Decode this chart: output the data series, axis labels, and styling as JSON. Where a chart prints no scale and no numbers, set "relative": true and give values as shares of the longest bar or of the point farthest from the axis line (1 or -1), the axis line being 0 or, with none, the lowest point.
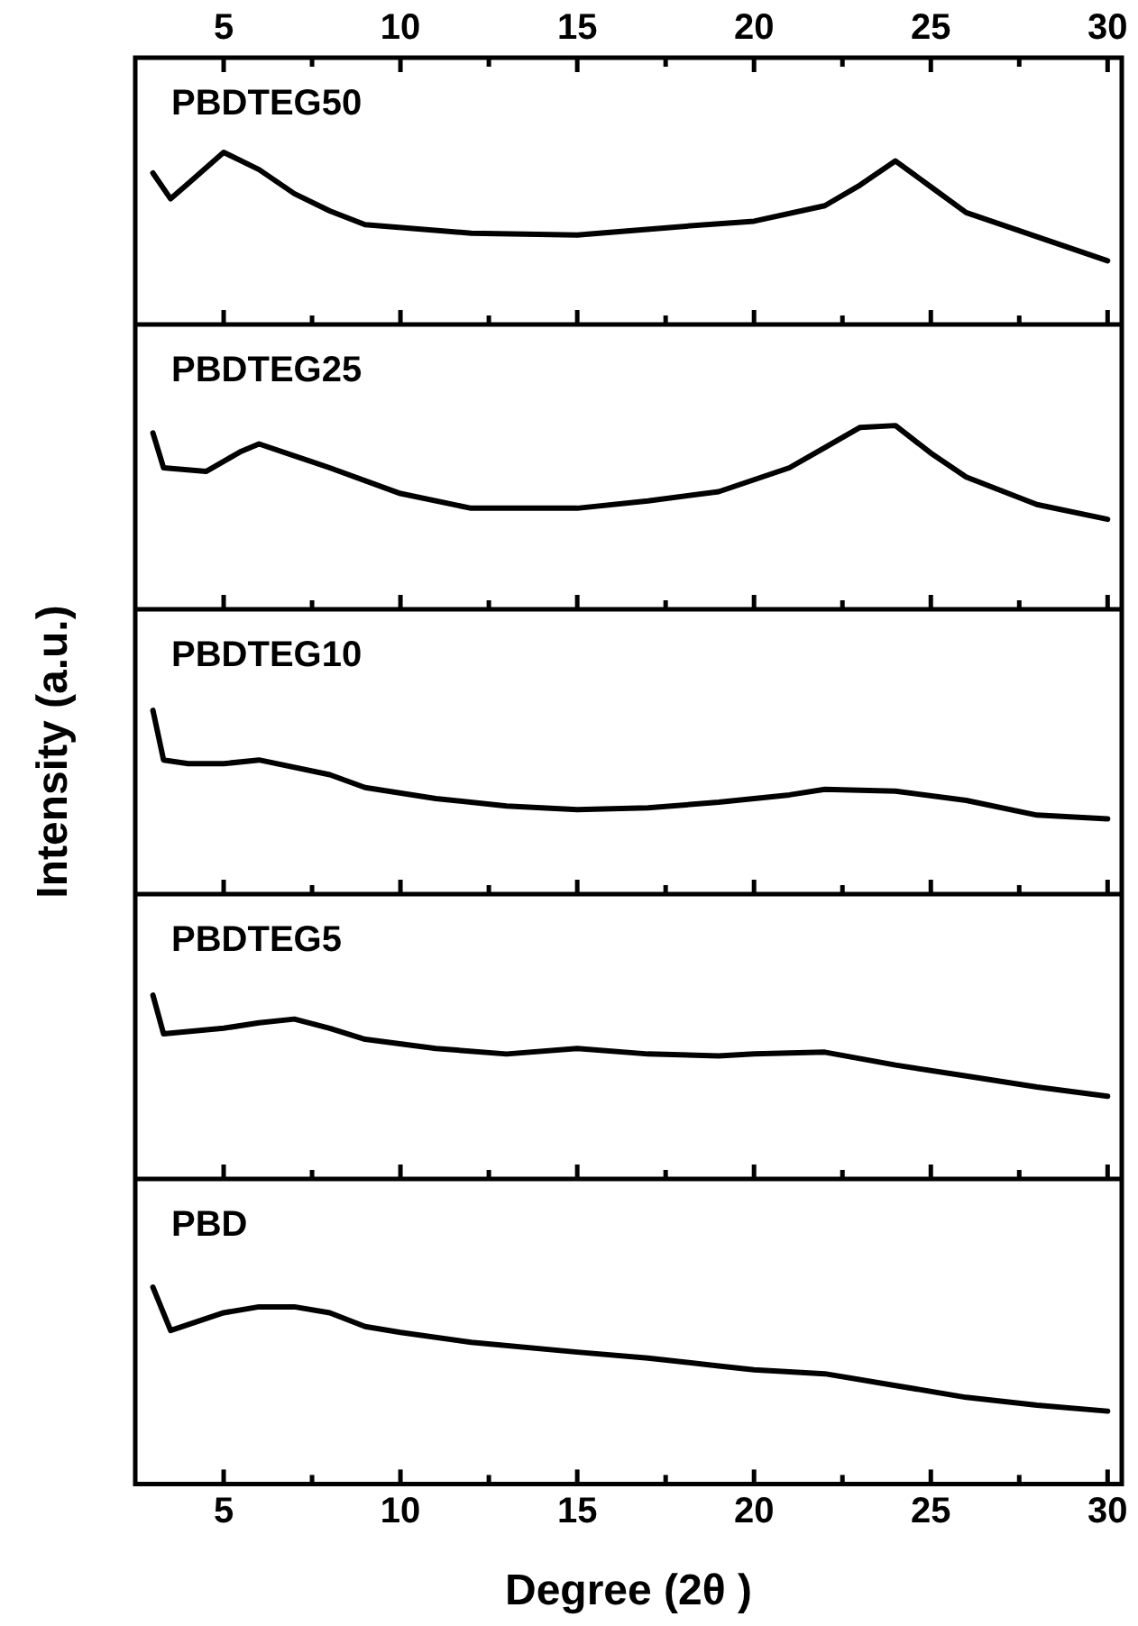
{
  "chart_data": [
    {
      "type": "line",
      "relative": true,
      "xlim": [
        2.5,
        30.4
      ],
      "x2lim": [
        2.5,
        30.4
      ],
      "tick_labels": false,
      "x2ticks": [
        5,
        {
          "value": 7.5,
          "label": null
        },
        10,
        {
          "value": 12.5,
          "label": null
        },
        15,
        {
          "value": 17.5,
          "label": null
        },
        20,
        {
          "value": 22.5,
          "label": null
        },
        25,
        {
          "value": 27.5,
          "label": null
        },
        30
      ],
      "xticks": [
        {
          "value": 5,
          "label": null
        },
        {
          "value": 7.5,
          "label": null
        },
        {
          "value": 10,
          "label": null
        },
        {
          "value": 12.5,
          "label": null
        },
        {
          "value": 15,
          "label": null
        },
        {
          "value": 17.5,
          "label": null
        },
        {
          "value": 20,
          "label": null
        },
        {
          "value": 22.5,
          "label": null
        },
        {
          "value": 25,
          "label": null
        },
        {
          "value": 27.5,
          "label": null
        },
        {
          "value": 30,
          "label": null
        }
      ],
      "series": [
        {
          "name": "PBDTEG50",
          "color": "#000000",
          "x": [
            3,
            3.5,
            4,
            5,
            6,
            7,
            8,
            9,
            12,
            15,
            18,
            20,
            22,
            23,
            24,
            25,
            26,
            28,
            30
          ],
          "values": [
            0.88,
            0.73,
            0.82,
            1,
            0.9,
            0.76,
            0.66,
            0.58,
            0.53,
            0.52,
            0.57,
            0.6,
            0.69,
            0.81,
            0.95,
            0.8,
            0.65,
            0.51,
            0.37
          ]
        }
      ]
    },
    {
      "type": "line",
      "relative": true,
      "xlim": [
        2.5,
        30.4
      ],
      "tick_labels": false,
      "xticks": [
        {
          "value": 5,
          "label": null
        },
        {
          "value": 7.5,
          "label": null
        },
        {
          "value": 10,
          "label": null
        },
        {
          "value": 12.5,
          "label": null
        },
        {
          "value": 15,
          "label": null
        },
        {
          "value": 17.5,
          "label": null
        },
        {
          "value": 20,
          "label": null
        },
        {
          "value": 22.5,
          "label": null
        },
        {
          "value": 25,
          "label": null
        },
        {
          "value": 27.5,
          "label": null
        },
        {
          "value": 30,
          "label": null
        }
      ],
      "series": [
        {
          "name": "PBDTEG25",
          "color": "#000000",
          "x": [
            3,
            3.3,
            4.5,
            5.5,
            6,
            8,
            10,
            12,
            15,
            17,
            19,
            21,
            22,
            23,
            24,
            25,
            26,
            28,
            30
          ],
          "values": [
            0.96,
            0.77,
            0.75,
            0.86,
            0.9,
            0.77,
            0.63,
            0.55,
            0.55,
            0.59,
            0.64,
            0.77,
            0.88,
            0.99,
            1,
            0.85,
            0.72,
            0.57,
            0.49
          ]
        }
      ]
    },
    {
      "type": "line",
      "relative": true,
      "xlim": [
        2.5,
        30.4
      ],
      "tick_labels": false,
      "ylabel": "Intensity (a.u.)",
      "xticks": [
        {
          "value": 5,
          "label": null
        },
        {
          "value": 7.5,
          "label": null
        },
        {
          "value": 10,
          "label": null
        },
        {
          "value": 12.5,
          "label": null
        },
        {
          "value": 15,
          "label": null
        },
        {
          "value": 17.5,
          "label": null
        },
        {
          "value": 20,
          "label": null
        },
        {
          "value": 22.5,
          "label": null
        },
        {
          "value": 25,
          "label": null
        },
        {
          "value": 27.5,
          "label": null
        },
        {
          "value": 30,
          "label": null
        }
      ],
      "series": [
        {
          "name": "PBDTEG10",
          "color": "#000000",
          "x": [
            3,
            3.3,
            4,
            5,
            6,
            8,
            9,
            11,
            13,
            15,
            17,
            19,
            21,
            22,
            24,
            26,
            28,
            30
          ],
          "values": [
            1,
            0.73,
            0.71,
            0.71,
            0.73,
            0.65,
            0.58,
            0.52,
            0.48,
            0.46,
            0.47,
            0.5,
            0.54,
            0.57,
            0.56,
            0.51,
            0.43,
            0.41
          ]
        }
      ]
    },
    {
      "type": "line",
      "relative": true,
      "xlim": [
        2.5,
        30.4
      ],
      "tick_labels": false,
      "xticks": [
        {
          "value": 5,
          "label": null
        },
        {
          "value": 7.5,
          "label": null
        },
        {
          "value": 10,
          "label": null
        },
        {
          "value": 12.5,
          "label": null
        },
        {
          "value": 15,
          "label": null
        },
        {
          "value": 17.5,
          "label": null
        },
        {
          "value": 20,
          "label": null
        },
        {
          "value": 22.5,
          "label": null
        },
        {
          "value": 25,
          "label": null
        },
        {
          "value": 27.5,
          "label": null
        },
        {
          "value": 30,
          "label": null
        }
      ],
      "series": [
        {
          "name": "PBDTEG5",
          "color": "#000000",
          "x": [
            3,
            3.3,
            5,
            6,
            7,
            8,
            9,
            11,
            13,
            15,
            17,
            19,
            20,
            22,
            24,
            26,
            28,
            30
          ],
          "values": [
            1,
            0.79,
            0.82,
            0.85,
            0.87,
            0.82,
            0.76,
            0.71,
            0.68,
            0.71,
            0.68,
            0.67,
            0.68,
            0.69,
            0.62,
            0.56,
            0.5,
            0.45
          ]
        }
      ]
    },
    {
      "type": "line",
      "relative": true,
      "xlim": [
        2.5,
        30.4
      ],
      "tick_labels": "x",
      "xlabel": "Degree (2θ )",
      "xticks": [
        5,
        {
          "value": 7.5,
          "label": null
        },
        10,
        {
          "value": 12.5,
          "label": null
        },
        15,
        {
          "value": 17.5,
          "label": null
        },
        20,
        {
          "value": 22.5,
          "label": null
        },
        25,
        {
          "value": 27.5,
          "label": null
        },
        30
      ],
      "series": [
        {
          "name": "PBD",
          "color": "#000000",
          "x": [
            3,
            3.5,
            5,
            6,
            7,
            8,
            9,
            10,
            12,
            15,
            17,
            19,
            20,
            22,
            24,
            26,
            28,
            30
          ],
          "values": [
            1,
            0.78,
            0.87,
            0.9,
            0.9,
            0.87,
            0.8,
            0.77,
            0.72,
            0.67,
            0.64,
            0.6,
            0.58,
            0.56,
            0.5,
            0.44,
            0.4,
            0.37
          ]
        }
      ]
    }
  ]
}
